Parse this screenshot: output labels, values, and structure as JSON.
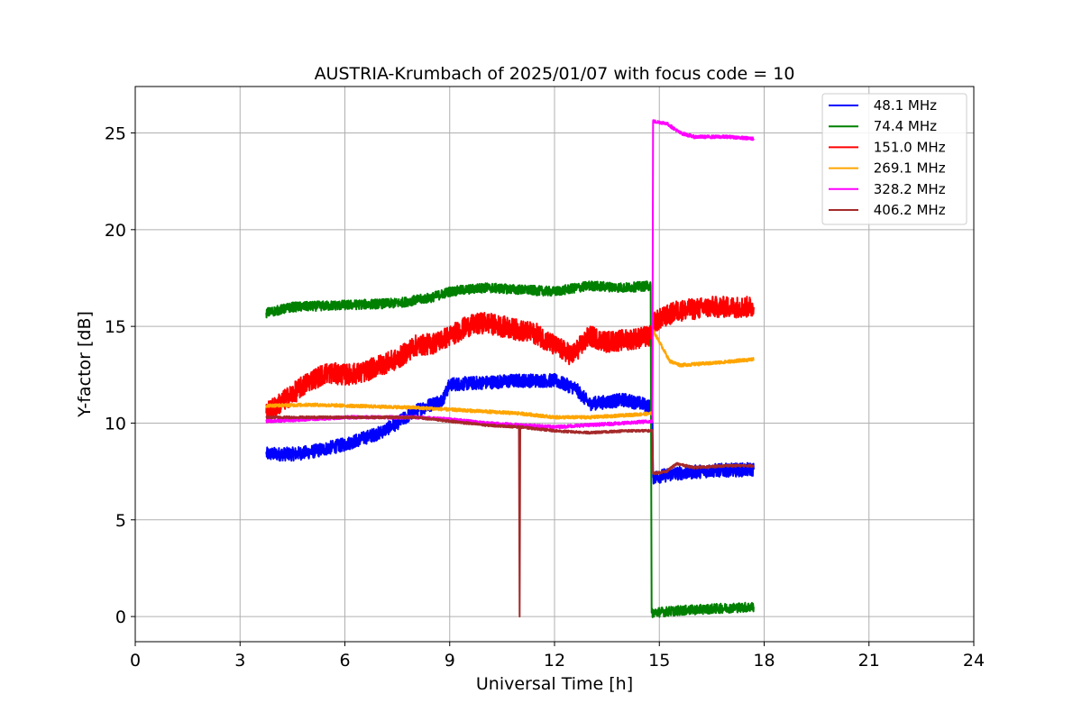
{
  "chart_data": {
    "type": "line",
    "title": "AUSTRIA-Krumbach of 2025/01/07 with focus code = 10",
    "xlabel": "Universal Time [h]",
    "ylabel": "Y-factor [dB]",
    "xlim": [
      0,
      24
    ],
    "ylim": [
      -1.3,
      27.4
    ],
    "xticks": [
      0,
      3,
      6,
      9,
      12,
      15,
      18,
      21,
      24
    ],
    "yticks": [
      0,
      5,
      10,
      15,
      20,
      25
    ],
    "grid": true,
    "legend_position": "top-right",
    "series": [
      {
        "name": " 48.1 MHz",
        "color": "#0000ff",
        "noise": 0.35,
        "points": [
          [
            3.75,
            8.4
          ],
          [
            4.5,
            8.4
          ],
          [
            5.0,
            8.5
          ],
          [
            5.5,
            8.7
          ],
          [
            6.0,
            8.9
          ],
          [
            6.5,
            9.2
          ],
          [
            7.0,
            9.5
          ],
          [
            7.5,
            10.0
          ],
          [
            8.0,
            10.6
          ],
          [
            8.5,
            11.0
          ],
          [
            8.8,
            11.2
          ],
          [
            9.0,
            12.0
          ],
          [
            10.0,
            12.1
          ],
          [
            11.0,
            12.2
          ],
          [
            12.0,
            12.2
          ],
          [
            12.6,
            11.8
          ],
          [
            13.0,
            11.0
          ],
          [
            13.5,
            11.1
          ],
          [
            14.0,
            11.2
          ],
          [
            14.5,
            11.0
          ],
          [
            14.8,
            10.8
          ],
          [
            14.82,
            7.2
          ],
          [
            15.5,
            7.4
          ],
          [
            16.5,
            7.55
          ],
          [
            17.7,
            7.6
          ]
        ]
      },
      {
        "name": " 74.4 MHz",
        "color": "#008000",
        "noise": 0.25,
        "points": [
          [
            3.75,
            15.7
          ],
          [
            4.5,
            16.0
          ],
          [
            6.0,
            16.1
          ],
          [
            7.5,
            16.2
          ],
          [
            8.5,
            16.5
          ],
          [
            9.0,
            16.8
          ],
          [
            10.0,
            17.0
          ],
          [
            11.0,
            16.9
          ],
          [
            12.0,
            16.8
          ],
          [
            13.0,
            17.1
          ],
          [
            14.0,
            17.0
          ],
          [
            14.75,
            17.1
          ],
          [
            14.78,
            0.2
          ],
          [
            15.5,
            0.3
          ],
          [
            16.5,
            0.4
          ],
          [
            17.7,
            0.5
          ]
        ]
      },
      {
        "name": " 151.0 MHz",
        "color": "#ff0000",
        "noise": 0.55,
        "points": [
          [
            3.75,
            10.5
          ],
          [
            4.5,
            11.5
          ],
          [
            5.0,
            12.2
          ],
          [
            5.5,
            12.6
          ],
          [
            6.0,
            12.5
          ],
          [
            6.5,
            12.6
          ],
          [
            7.0,
            13.0
          ],
          [
            7.5,
            13.3
          ],
          [
            8.0,
            14.0
          ],
          [
            8.5,
            14.1
          ],
          [
            9.0,
            14.5
          ],
          [
            9.5,
            15.0
          ],
          [
            10.0,
            15.2
          ],
          [
            10.5,
            15.0
          ],
          [
            11.0,
            14.8
          ],
          [
            11.5,
            14.6
          ],
          [
            12.0,
            14.0
          ],
          [
            12.5,
            13.5
          ],
          [
            13.0,
            14.5
          ],
          [
            13.5,
            14.2
          ],
          [
            14.0,
            14.3
          ],
          [
            14.8,
            14.5
          ],
          [
            14.82,
            15.2
          ],
          [
            15.5,
            15.8
          ],
          [
            16.5,
            16.0
          ],
          [
            17.7,
            16.0
          ]
        ]
      },
      {
        "name": " 269.1 MHz",
        "color": "#ffa500",
        "noise": 0.08,
        "points": [
          [
            3.75,
            10.9
          ],
          [
            5.0,
            10.95
          ],
          [
            6.0,
            10.9
          ],
          [
            7.0,
            10.85
          ],
          [
            8.0,
            10.8
          ],
          [
            9.0,
            10.7
          ],
          [
            10.0,
            10.6
          ],
          [
            11.0,
            10.5
          ],
          [
            12.0,
            10.3
          ],
          [
            13.0,
            10.3
          ],
          [
            14.0,
            10.4
          ],
          [
            14.8,
            10.5
          ],
          [
            14.82,
            14.8
          ],
          [
            15.0,
            14.2
          ],
          [
            15.3,
            13.2
          ],
          [
            15.6,
            13.0
          ],
          [
            16.5,
            13.1
          ],
          [
            17.7,
            13.3
          ]
        ]
      },
      {
        "name": " 328.2 MHz",
        "color": "#ff00ff",
        "noise": 0.08,
        "points": [
          [
            3.75,
            10.1
          ],
          [
            5.0,
            10.2
          ],
          [
            6.0,
            10.3
          ],
          [
            7.0,
            10.3
          ],
          [
            8.0,
            10.3
          ],
          [
            9.0,
            10.2
          ],
          [
            10.0,
            10.0
          ],
          [
            11.0,
            9.9
          ],
          [
            12.0,
            9.8
          ],
          [
            13.0,
            9.9
          ],
          [
            14.0,
            10.0
          ],
          [
            14.8,
            10.1
          ],
          [
            14.82,
            25.6
          ],
          [
            15.2,
            25.5
          ],
          [
            15.6,
            25.0
          ],
          [
            16.0,
            24.8
          ],
          [
            17.0,
            24.8
          ],
          [
            17.7,
            24.7
          ]
        ]
      },
      {
        "name": " 406.2 MHz",
        "color": "#a52a2a",
        "noise": 0.06,
        "points": [
          [
            3.75,
            10.3
          ],
          [
            5.0,
            10.3
          ],
          [
            6.0,
            10.3
          ],
          [
            7.0,
            10.3
          ],
          [
            8.0,
            10.3
          ],
          [
            9.0,
            10.1
          ],
          [
            10.0,
            9.9
          ],
          [
            10.98,
            9.8
          ],
          [
            11.0,
            0.0
          ],
          [
            11.02,
            9.8
          ],
          [
            12.0,
            9.6
          ],
          [
            13.0,
            9.5
          ],
          [
            14.0,
            9.6
          ],
          [
            14.8,
            9.6
          ],
          [
            14.82,
            7.4
          ],
          [
            15.2,
            7.5
          ],
          [
            15.5,
            7.9
          ],
          [
            16.0,
            7.7
          ],
          [
            17.0,
            7.8
          ],
          [
            17.7,
            7.8
          ]
        ]
      }
    ]
  }
}
